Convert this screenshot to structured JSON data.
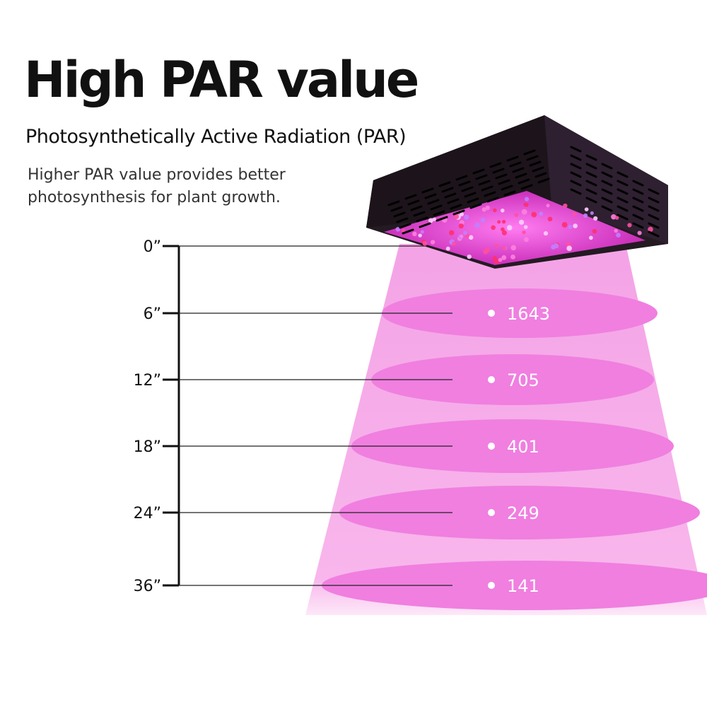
{
  "title": "High PAR value",
  "subtitle": "Photosynthetically Active Radiation (PAR)",
  "description": "Higher PAR value provides better photosynthesis for plant growth.",
  "colors": {
    "beam": "#f7a8e8",
    "ellipse": "#f07fe0",
    "lamp_body": "#231820",
    "led_panel": "#e040d0"
  },
  "measurements": [
    {
      "height": "0”",
      "par": ""
    },
    {
      "height": "6”",
      "par": "1643"
    },
    {
      "height": "12”",
      "par": "705"
    },
    {
      "height": "18”",
      "par": "401"
    },
    {
      "height": "24”",
      "par": "249"
    },
    {
      "height": "36”",
      "par": "141"
    }
  ]
}
